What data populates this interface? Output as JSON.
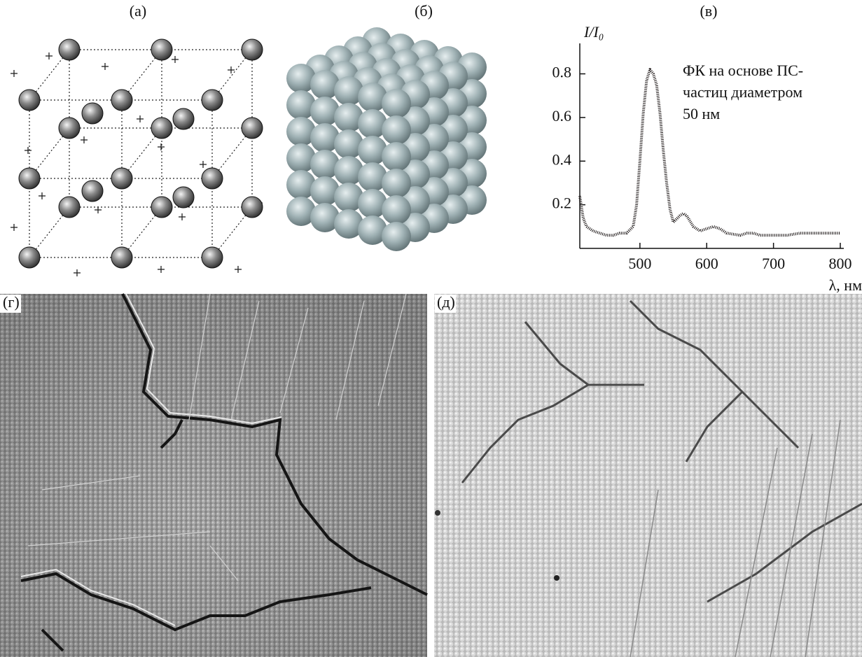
{
  "panels": {
    "a": "(а)",
    "b": "(б)",
    "v": "(в)",
    "g": "(г)",
    "d": "(д)"
  },
  "chart_data": {
    "type": "line",
    "y_label": "I/I₀",
    "x_label": "λ, нм",
    "annotation": [
      "ФК на основе ПС-",
      "частиц диаметром",
      "50 нм"
    ],
    "x": [
      410,
      415,
      420,
      430,
      440,
      450,
      460,
      470,
      480,
      490,
      495,
      500,
      505,
      510,
      515,
      520,
      525,
      530,
      535,
      540,
      545,
      550,
      560,
      565,
      570,
      580,
      590,
      600,
      610,
      620,
      630,
      650,
      660,
      670,
      680,
      700,
      720,
      740,
      760,
      780,
      800
    ],
    "values": [
      0.24,
      0.14,
      0.1,
      0.08,
      0.07,
      0.06,
      0.06,
      0.07,
      0.07,
      0.1,
      0.2,
      0.4,
      0.62,
      0.77,
      0.82,
      0.8,
      0.75,
      0.62,
      0.45,
      0.3,
      0.18,
      0.12,
      0.15,
      0.16,
      0.15,
      0.1,
      0.08,
      0.09,
      0.1,
      0.09,
      0.07,
      0.06,
      0.07,
      0.07,
      0.06,
      0.06,
      0.06,
      0.07,
      0.07,
      0.07,
      0.07
    ],
    "color": "#1a1414",
    "xlim": [
      410,
      800
    ],
    "ylim": [
      0,
      0.93
    ],
    "xticks": [
      500,
      600,
      700,
      800
    ],
    "yticks": [
      0.2,
      0.4,
      0.6,
      0.8
    ]
  }
}
